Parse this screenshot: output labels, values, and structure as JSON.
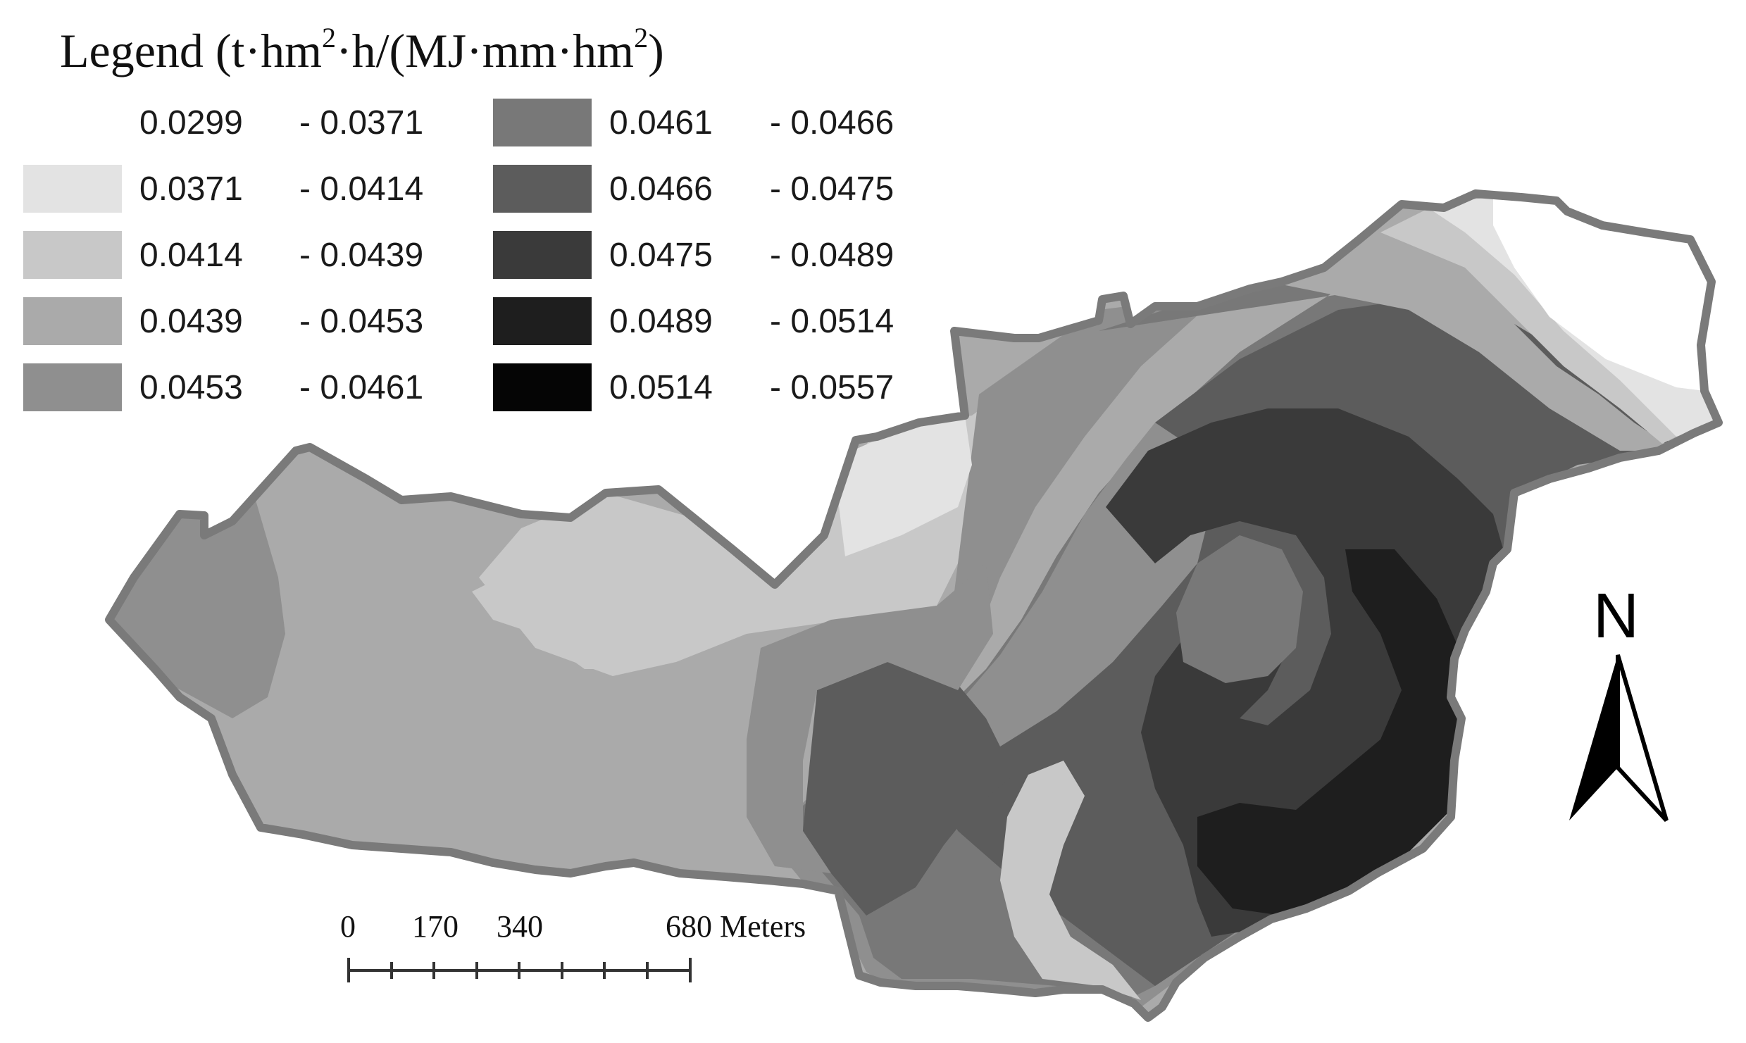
{
  "legend": {
    "title_main": "Legend (t·hm",
    "sup1": "2",
    "title_mid": "·h/(MJ·mm·hm",
    "sup2": "2",
    "title_end": ")",
    "classes": [
      {
        "from": "0.0299",
        "to": "- 0.0371",
        "color": "#ffffff"
      },
      {
        "from": "0.0371",
        "to": "- 0.0414",
        "color": "#e3e3e3"
      },
      {
        "from": "0.0414",
        "to": "- 0.0439",
        "color": "#c8c8c8"
      },
      {
        "from": "0.0439",
        "to": "- 0.0453",
        "color": "#aaaaaa"
      },
      {
        "from": "0.0453",
        "to": "- 0.0461",
        "color": "#8f8f8f"
      },
      {
        "from": "0.0461",
        "to": "- 0.0466",
        "color": "#787878"
      },
      {
        "from": "0.0466",
        "to": "- 0.0475",
        "color": "#5c5c5c"
      },
      {
        "from": "0.0475",
        "to": "- 0.0489",
        "color": "#3a3a3a"
      },
      {
        "from": "0.0489",
        "to": "- 0.0514",
        "color": "#1e1e1e"
      },
      {
        "from": "0.0514",
        "to": "- 0.0557",
        "color": "#050505"
      }
    ]
  },
  "scale_bar": {
    "labels": [
      "0",
      "170",
      "340",
      "680 Meters"
    ]
  },
  "north_arrow": {
    "label": "N"
  },
  "boundary_color": "#7a7a7a"
}
